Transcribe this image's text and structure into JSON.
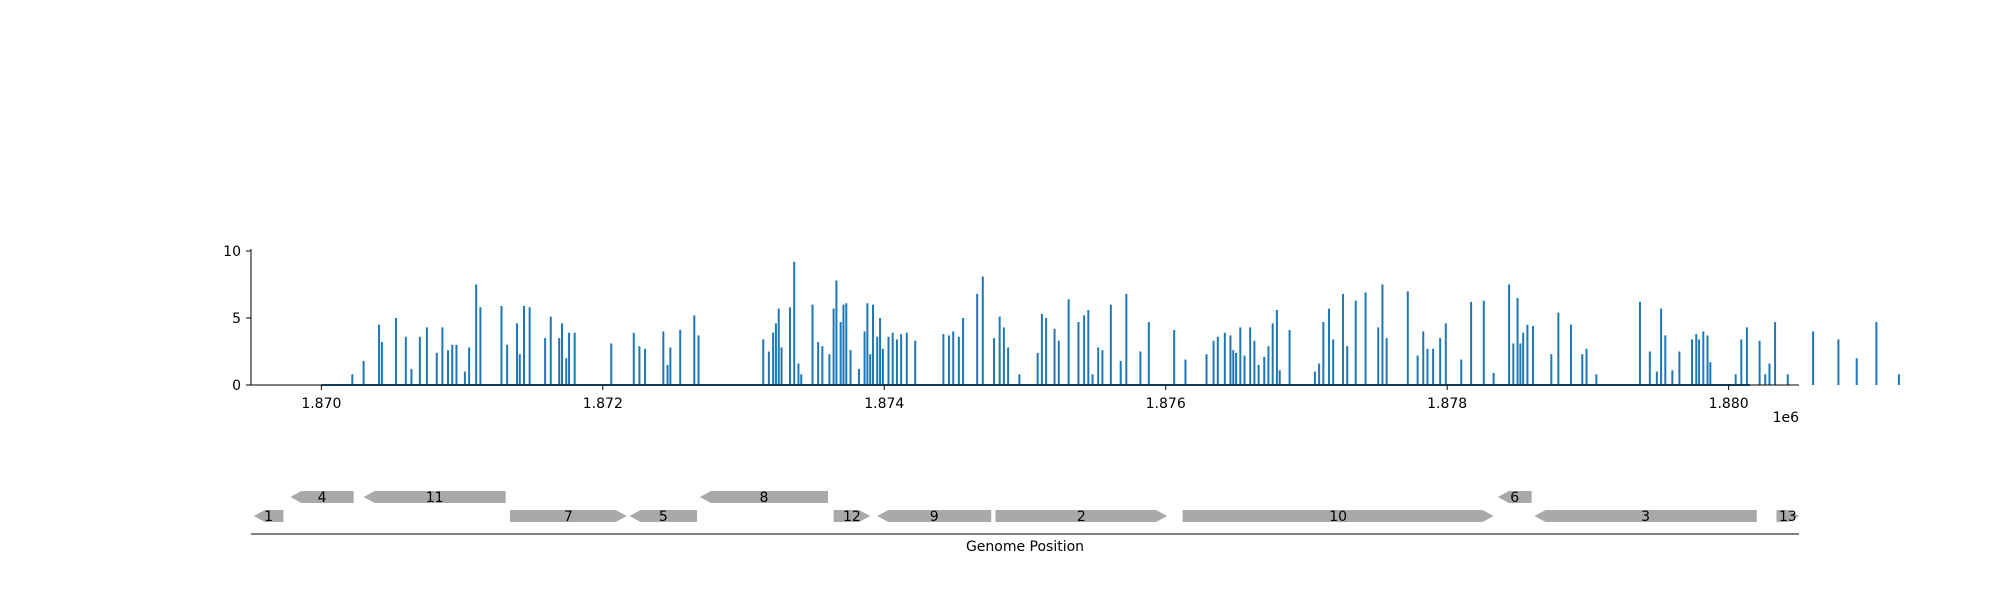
{
  "chart_data": [
    {
      "type": "bar",
      "panel": "coverage",
      "color": "#1f77b4",
      "x_range": [
        1869500,
        1880500
      ],
      "ylim": [
        0,
        10
      ],
      "yticks": [
        0,
        5,
        10
      ],
      "xticks": [
        1870000,
        1872000,
        1874000,
        1876000,
        1878000,
        1880000
      ],
      "xtick_labels": [
        "1.870",
        "1.872",
        "1.874",
        "1.876",
        "1.878",
        "1.880"
      ],
      "x_offset_label": "1e6",
      "baseline_range": [
        1870000,
        1880150
      ],
      "spikes": [
        [
          1870220,
          0.8
        ],
        [
          1870300,
          1.8
        ],
        [
          1870410,
          4.5
        ],
        [
          1870430,
          3.2
        ],
        [
          1870530,
          5.0
        ],
        [
          1870600,
          3.6
        ],
        [
          1870640,
          1.2
        ],
        [
          1870700,
          3.6
        ],
        [
          1870750,
          4.3
        ],
        [
          1870820,
          2.4
        ],
        [
          1870860,
          4.3
        ],
        [
          1870900,
          2.6
        ],
        [
          1870930,
          3.0
        ],
        [
          1870960,
          3.0
        ],
        [
          1871020,
          1.0
        ],
        [
          1871050,
          2.8
        ],
        [
          1871100,
          7.5
        ],
        [
          1871130,
          5.8
        ],
        [
          1871280,
          5.9
        ],
        [
          1871320,
          3.0
        ],
        [
          1871390,
          4.6
        ],
        [
          1871410,
          2.3
        ],
        [
          1871440,
          5.9
        ],
        [
          1871480,
          5.8
        ],
        [
          1871590,
          3.5
        ],
        [
          1871630,
          5.1
        ],
        [
          1871690,
          3.5
        ],
        [
          1871710,
          4.6
        ],
        [
          1871740,
          2.0
        ],
        [
          1871760,
          3.9
        ],
        [
          1871800,
          3.9
        ],
        [
          1872060,
          3.1
        ],
        [
          1872220,
          3.9
        ],
        [
          1872260,
          2.9
        ],
        [
          1872300,
          2.7
        ],
        [
          1872430,
          4.0
        ],
        [
          1872460,
          1.5
        ],
        [
          1872480,
          2.8
        ],
        [
          1872550,
          4.1
        ],
        [
          1872650,
          5.2
        ],
        [
          1872680,
          3.7
        ],
        [
          1873140,
          3.4
        ],
        [
          1873180,
          2.5
        ],
        [
          1873210,
          3.9
        ],
        [
          1873230,
          4.6
        ],
        [
          1873250,
          5.7
        ],
        [
          1873270,
          2.8
        ],
        [
          1873330,
          5.8
        ],
        [
          1873360,
          9.2
        ],
        [
          1873390,
          1.6
        ],
        [
          1873410,
          0.8
        ],
        [
          1873490,
          6.0
        ],
        [
          1873530,
          3.2
        ],
        [
          1873560,
          2.9
        ],
        [
          1873610,
          2.3
        ],
        [
          1873640,
          5.7
        ],
        [
          1873660,
          7.8
        ],
        [
          1873690,
          4.7
        ],
        [
          1873710,
          6.0
        ],
        [
          1873730,
          6.1
        ],
        [
          1873760,
          2.6
        ],
        [
          1873820,
          1.2
        ],
        [
          1873860,
          4.0
        ],
        [
          1873880,
          6.1
        ],
        [
          1873900,
          2.3
        ],
        [
          1873920,
          6.0
        ],
        [
          1873950,
          3.6
        ],
        [
          1873970,
          5.0
        ],
        [
          1873990,
          2.7
        ],
        [
          1874030,
          3.6
        ],
        [
          1874060,
          3.9
        ],
        [
          1874090,
          3.4
        ],
        [
          1874120,
          3.8
        ],
        [
          1874160,
          3.9
        ],
        [
          1874220,
          3.3
        ],
        [
          1874420,
          3.8
        ],
        [
          1874460,
          3.7
        ],
        [
          1874490,
          4.0
        ],
        [
          1874530,
          3.6
        ],
        [
          1874560,
          5.0
        ],
        [
          1874660,
          6.8
        ],
        [
          1874700,
          8.1
        ],
        [
          1874780,
          3.5
        ],
        [
          1874820,
          5.1
        ],
        [
          1874850,
          4.3
        ],
        [
          1874880,
          2.8
        ],
        [
          1874960,
          0.8
        ],
        [
          1875090,
          2.4
        ],
        [
          1875120,
          5.3
        ],
        [
          1875150,
          5.0
        ],
        [
          1875210,
          4.2
        ],
        [
          1875240,
          3.3
        ],
        [
          1875310,
          6.4
        ],
        [
          1875380,
          4.7
        ],
        [
          1875420,
          5.2
        ],
        [
          1875450,
          5.6
        ],
        [
          1875480,
          0.8
        ],
        [
          1875520,
          2.8
        ],
        [
          1875550,
          2.6
        ],
        [
          1875610,
          6.0
        ],
        [
          1875680,
          1.8
        ],
        [
          1875720,
          6.8
        ],
        [
          1875820,
          2.5
        ],
        [
          1875880,
          4.7
        ],
        [
          1876060,
          4.1
        ],
        [
          1876140,
          1.9
        ],
        [
          1876290,
          2.3
        ],
        [
          1876340,
          3.3
        ],
        [
          1876370,
          3.6
        ],
        [
          1876420,
          3.9
        ],
        [
          1876460,
          3.7
        ],
        [
          1876480,
          2.6
        ],
        [
          1876500,
          2.4
        ],
        [
          1876530,
          4.3
        ],
        [
          1876560,
          2.2
        ],
        [
          1876600,
          4.3
        ],
        [
          1876630,
          3.3
        ],
        [
          1876660,
          1.5
        ],
        [
          1876700,
          2.1
        ],
        [
          1876730,
          2.9
        ],
        [
          1876760,
          4.6
        ],
        [
          1876790,
          5.6
        ],
        [
          1876810,
          1.1
        ],
        [
          1876880,
          4.1
        ],
        [
          1877060,
          1.0
        ],
        [
          1877090,
          1.6
        ],
        [
          1877120,
          4.7
        ],
        [
          1877160,
          5.7
        ],
        [
          1877190,
          3.4
        ],
        [
          1877260,
          6.8
        ],
        [
          1877290,
          2.9
        ],
        [
          1877350,
          6.3
        ],
        [
          1877420,
          6.9
        ],
        [
          1877510,
          4.3
        ],
        [
          1877540,
          7.5
        ],
        [
          1877570,
          3.5
        ],
        [
          1877720,
          7.0
        ],
        [
          1877790,
          2.2
        ],
        [
          1877830,
          4.0
        ],
        [
          1877860,
          2.7
        ],
        [
          1877900,
          2.7
        ],
        [
          1877950,
          3.5
        ],
        [
          1877990,
          4.6
        ],
        [
          1878100,
          1.9
        ],
        [
          1878170,
          6.2
        ],
        [
          1878260,
          6.3
        ],
        [
          1878330,
          0.9
        ],
        [
          1878440,
          7.5
        ],
        [
          1878470,
          3.1
        ],
        [
          1878500,
          6.5
        ],
        [
          1878520,
          3.1
        ],
        [
          1878540,
          3.9
        ],
        [
          1878570,
          4.5
        ],
        [
          1878610,
          4.4
        ],
        [
          1878740,
          2.3
        ],
        [
          1878790,
          5.4
        ],
        [
          1878880,
          4.5
        ],
        [
          1878960,
          2.3
        ],
        [
          1878990,
          2.7
        ],
        [
          1879060,
          0.8
        ],
        [
          1879370,
          6.2
        ],
        [
          1879440,
          2.5
        ],
        [
          1879490,
          1.0
        ],
        [
          1879520,
          5.7
        ],
        [
          1879550,
          3.7
        ],
        [
          1879600,
          1.1
        ],
        [
          1879650,
          2.5
        ],
        [
          1879740,
          3.4
        ],
        [
          1879770,
          3.8
        ],
        [
          1879790,
          3.4
        ],
        [
          1879820,
          4.0
        ],
        [
          1879850,
          3.7
        ],
        [
          1879870,
          1.7
        ],
        [
          1880050,
          0.8
        ],
        [
          1880090,
          3.4
        ],
        [
          1880130,
          4.3
        ],
        [
          1880220,
          3.3
        ],
        [
          1880260,
          0.8
        ],
        [
          1880290,
          1.6
        ],
        [
          1880330,
          4.7
        ],
        [
          1880420,
          0.8
        ],
        [
          1880600,
          4.0
        ],
        [
          1880780,
          3.4
        ],
        [
          1880910,
          2.0
        ],
        [
          1881050,
          4.7
        ],
        [
          1881210,
          0.8
        ]
      ]
    },
    {
      "type": "gene-track",
      "panel": "genes",
      "color": "#a9a9a9",
      "xlabel": "Genome Position",
      "genes": [
        {
          "label": "1",
          "start": 1869520,
          "end": 1869730,
          "strand": "-",
          "row": 0
        },
        {
          "label": "4",
          "start": 1869780,
          "end": 1870230,
          "strand": "-",
          "row": 1
        },
        {
          "label": "11",
          "start": 1870300,
          "end": 1871310,
          "strand": "-",
          "row": 1
        },
        {
          "label": "7",
          "start": 1871340,
          "end": 1872170,
          "strand": "+",
          "row": 0
        },
        {
          "label": "5",
          "start": 1872190,
          "end": 1872670,
          "strand": "-",
          "row": 0
        },
        {
          "label": "8",
          "start": 1872690,
          "end": 1873600,
          "strand": "-",
          "row": 1
        },
        {
          "label": "12",
          "start": 1873640,
          "end": 1873900,
          "strand": "+",
          "row": 0
        },
        {
          "label": "9",
          "start": 1873950,
          "end": 1874760,
          "strand": "-",
          "row": 0
        },
        {
          "label": "2",
          "start": 1874790,
          "end": 1876010,
          "strand": "+",
          "row": 0
        },
        {
          "label": "10",
          "start": 1876120,
          "end": 1878330,
          "strand": "+",
          "row": 0
        },
        {
          "label": "6",
          "start": 1878360,
          "end": 1878600,
          "strand": "-",
          "row": 1
        },
        {
          "label": "3",
          "start": 1878620,
          "end": 1880200,
          "strand": "-",
          "row": 0
        },
        {
          "label": "13",
          "start": 1880340,
          "end": 1880500,
          "strand": "+",
          "row": 0
        }
      ]
    }
  ]
}
